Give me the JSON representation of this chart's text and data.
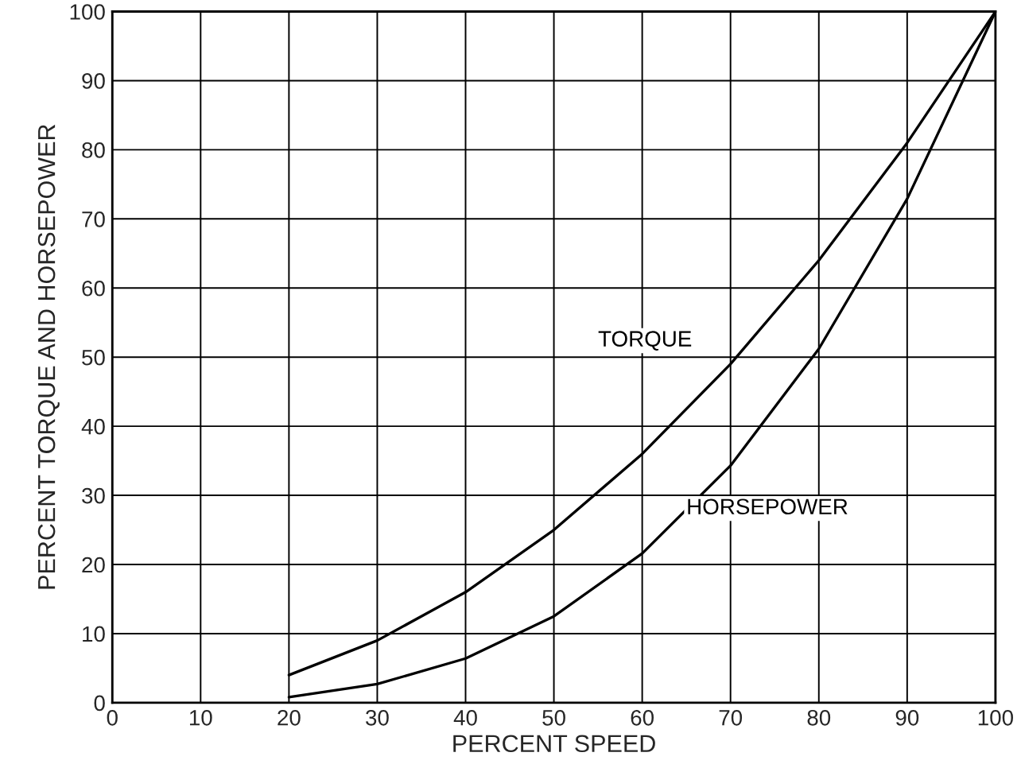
{
  "chart_data": {
    "type": "line",
    "xlabel": "PERCENT SPEED",
    "ylabel": "PERCENT TORQUE AND HORSEPOWER",
    "x": [
      20,
      30,
      40,
      50,
      60,
      70,
      80,
      90,
      100
    ],
    "series": [
      {
        "name": "TORQUE",
        "color": "#000000",
        "values": [
          4,
          9,
          16,
          25,
          36,
          49,
          64,
          81,
          100
        ]
      },
      {
        "name": "HORSEPOWER",
        "color": "#000000",
        "values": [
          0.8,
          2.7,
          6.4,
          12.5,
          21.6,
          34.3,
          51.2,
          72.9,
          100
        ]
      }
    ],
    "xlim": [
      0,
      100
    ],
    "ylim": [
      0,
      100
    ],
    "xticks": [
      0,
      10,
      20,
      30,
      40,
      50,
      60,
      70,
      80,
      90,
      100
    ],
    "yticks": [
      0,
      10,
      20,
      30,
      40,
      50,
      60,
      70,
      80,
      90,
      100
    ],
    "grid": true,
    "legend": false,
    "marker": "none",
    "line_style": "solid"
  }
}
